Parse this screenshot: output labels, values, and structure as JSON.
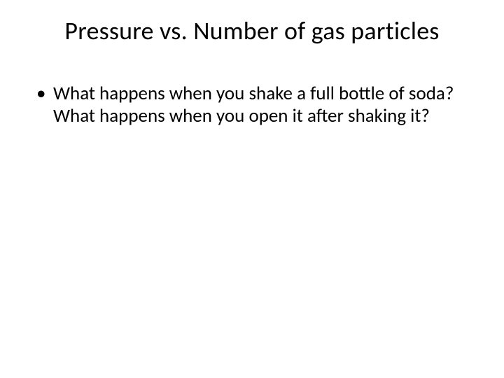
{
  "slide": {
    "title": "Pressure vs. Number of gas particles",
    "bullets": [
      {
        "marker": "•",
        "text": "What happens when you shake a full bottle of soda? What happens when you open it after shaking it?"
      }
    ],
    "background_color": "#ffffff",
    "text_color": "#000000",
    "title_fontsize": 36,
    "body_fontsize": 27
  }
}
